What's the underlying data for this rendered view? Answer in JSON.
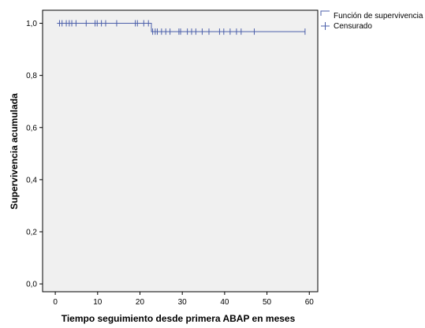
{
  "chart_data": {
    "type": "line",
    "subtype": "kaplan-meier-survival",
    "title": "",
    "xlabel": "Tiempo seguimiento desde primera ABAP en meses",
    "ylabel": "Supervivencia acumulada",
    "xlim": [
      -3,
      62
    ],
    "ylim": [
      -0.03,
      1.05
    ],
    "xticks": [
      0,
      10,
      20,
      30,
      40,
      50,
      60
    ],
    "yticks": [
      0.0,
      0.2,
      0.4,
      0.6,
      0.8,
      1.0
    ],
    "ytick_labels": [
      "0,0",
      "0,2",
      "0,4",
      "0,6",
      "0,8",
      "1,0"
    ],
    "grid": false,
    "legend_position": "top-right-outside",
    "colors": {
      "line": "#4b5faa",
      "plot_background": "#f0f0f0",
      "page_background": "#ffffff"
    },
    "series": [
      {
        "name": "Función de supervivencia",
        "steps": [
          {
            "x": 0.4,
            "y": 1.0
          },
          {
            "x": 22.7,
            "y": 1.0
          },
          {
            "x": 22.7,
            "y": 0.968
          },
          {
            "x": 59,
            "y": 0.968
          }
        ]
      },
      {
        "name": "Censurado",
        "censored": [
          {
            "x": 1.0,
            "y": 1.0
          },
          {
            "x": 1.6,
            "y": 1.0
          },
          {
            "x": 2.6,
            "y": 1.0
          },
          {
            "x": 3.3,
            "y": 1.0
          },
          {
            "x": 3.9,
            "y": 1.0
          },
          {
            "x": 4.9,
            "y": 1.0
          },
          {
            "x": 7.3,
            "y": 1.0
          },
          {
            "x": 9.4,
            "y": 1.0
          },
          {
            "x": 9.9,
            "y": 1.0
          },
          {
            "x": 10.9,
            "y": 1.0
          },
          {
            "x": 11.9,
            "y": 1.0
          },
          {
            "x": 14.5,
            "y": 1.0
          },
          {
            "x": 18.9,
            "y": 1.0
          },
          {
            "x": 19.4,
            "y": 1.0
          },
          {
            "x": 20.9,
            "y": 1.0
          },
          {
            "x": 22.0,
            "y": 1.0
          },
          {
            "x": 23.0,
            "y": 0.968
          },
          {
            "x": 23.6,
            "y": 0.968
          },
          {
            "x": 24.1,
            "y": 0.968
          },
          {
            "x": 25.1,
            "y": 0.968
          },
          {
            "x": 26.1,
            "y": 0.968
          },
          {
            "x": 27.1,
            "y": 0.968
          },
          {
            "x": 29.2,
            "y": 0.968
          },
          {
            "x": 29.6,
            "y": 0.968
          },
          {
            "x": 31.2,
            "y": 0.968
          },
          {
            "x": 32.2,
            "y": 0.968
          },
          {
            "x": 33.2,
            "y": 0.968
          },
          {
            "x": 34.7,
            "y": 0.968
          },
          {
            "x": 36.3,
            "y": 0.968
          },
          {
            "x": 38.8,
            "y": 0.968
          },
          {
            "x": 39.8,
            "y": 0.968
          },
          {
            "x": 41.3,
            "y": 0.968
          },
          {
            "x": 42.8,
            "y": 0.968
          },
          {
            "x": 43.9,
            "y": 0.968
          },
          {
            "x": 47.0,
            "y": 0.968
          },
          {
            "x": 59.0,
            "y": 0.968
          }
        ]
      }
    ]
  }
}
